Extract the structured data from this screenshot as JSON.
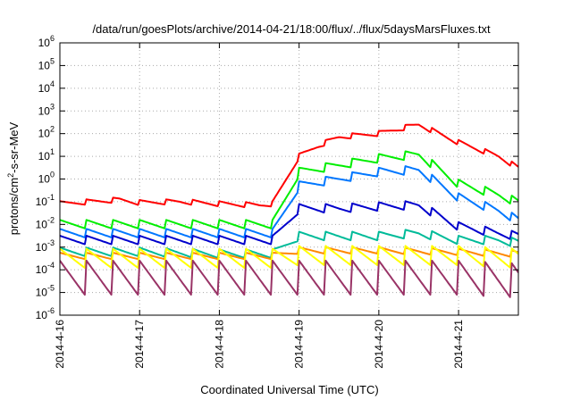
{
  "chart_data": {
    "type": "line",
    "title": "/data/run/goesPlots/archive/2014-04-21/18:00/flux/../flux/5daysMarsFluxes.txt",
    "xlabel": "Coordinated Universal Time (UTC)",
    "ylabel_parts": [
      "protons/cm",
      "2",
      "-s-sr-MeV"
    ],
    "y_scale": "log",
    "ylim": [
      1e-06,
      1000000.0
    ],
    "xlim": [
      "2014-04-16 00:00",
      "2014-04-21 18:00"
    ],
    "grid": true,
    "legend": "none",
    "x_ticks": [
      "2014-4-16",
      "2014-4-17",
      "2014-4-18",
      "2014-4-19",
      "2014-4-20",
      "2014-4-21"
    ],
    "y_ticks": [
      {
        "base": "10",
        "exp": "-6"
      },
      {
        "base": "10",
        "exp": "-5"
      },
      {
        "base": "10",
        "exp": "-4"
      },
      {
        "base": "10",
        "exp": "-3"
      },
      {
        "base": "10",
        "exp": "-2"
      },
      {
        "base": "10",
        "exp": "-1"
      },
      {
        "base": "10",
        "exp": "0"
      },
      {
        "base": "10",
        "exp": "1"
      },
      {
        "base": "10",
        "exp": "2"
      },
      {
        "base": "10",
        "exp": "3"
      },
      {
        "base": "10",
        "exp": "4"
      },
      {
        "base": "10",
        "exp": "5"
      },
      {
        "base": "10",
        "exp": "6"
      }
    ],
    "series": [
      {
        "color": "#ff0000",
        "sawtooth": 0.12,
        "x": [
          "2014-04-16 00:00",
          "2014-04-16 18:00",
          "2014-04-17 00:00",
          "2014-04-17 12:00",
          "2014-04-18 00:00",
          "2014-04-18 12:00",
          "2014-04-18 16:00",
          "2014-04-19 00:00",
          "2014-04-19 06:00",
          "2014-04-19 12:00",
          "2014-04-20 00:00",
          "2014-04-20 12:00",
          "2014-04-21 00:00",
          "2014-04-21 12:00",
          "2014-04-21 18:00"
        ],
        "y": [
          0.08,
          0.12,
          0.09,
          0.1,
          0.08,
          0.07,
          0.08,
          10,
          30,
          70,
          100,
          250,
          40,
          10,
          3
        ]
      },
      {
        "color": "#00ee00",
        "sawtooth": 0.2,
        "x": [
          "2014-04-16 00:00",
          "2014-04-17 00:00",
          "2014-04-18 00:00",
          "2014-04-18 16:00",
          "2014-04-19 00:00",
          "2014-04-19 12:00",
          "2014-04-20 00:00",
          "2014-04-20 12:00",
          "2014-04-21 00:00",
          "2014-04-21 12:00",
          "2014-04-21 18:00"
        ],
        "y": [
          0.01,
          0.01,
          0.01,
          0.01,
          2,
          4,
          8,
          12,
          0.6,
          0.2,
          0.09
        ]
      },
      {
        "color": "#0077ff",
        "sawtooth": 0.2,
        "x": [
          "2014-04-16 00:00",
          "2014-04-17 00:00",
          "2014-04-18 00:00",
          "2014-04-18 16:00",
          "2014-04-19 00:00",
          "2014-04-19 12:00",
          "2014-04-20 00:00",
          "2014-04-20 12:00",
          "2014-04-21 00:00",
          "2014-04-21 12:00",
          "2014-04-21 18:00"
        ],
        "y": [
          0.004,
          0.004,
          0.004,
          0.004,
          0.5,
          1,
          2,
          2.5,
          0.15,
          0.04,
          0.015
        ]
      },
      {
        "color": "#0000cc",
        "sawtooth": 0.2,
        "x": [
          "2014-04-16 00:00",
          "2014-04-17 00:00",
          "2014-04-18 00:00",
          "2014-04-18 16:00",
          "2014-04-19 00:00",
          "2014-04-19 12:00",
          "2014-04-20 00:00",
          "2014-04-20 12:00",
          "2014-04-21 00:00",
          "2014-04-21 12:00",
          "2014-04-21 18:00"
        ],
        "y": [
          0.002,
          0.002,
          0.002,
          0.002,
          0.05,
          0.05,
          0.06,
          0.07,
          0.008,
          0.004,
          0.003
        ]
      },
      {
        "color": "#00bb99",
        "sawtooth": 0.2,
        "x": [
          "2014-04-16 00:00",
          "2014-04-17 00:00",
          "2014-04-18 00:00",
          "2014-04-18 16:00",
          "2014-04-19 00:00",
          "2014-04-19 12:00",
          "2014-04-20 00:00",
          "2014-04-20 12:00",
          "2014-04-21 00:00",
          "2014-04-21 12:00",
          "2014-04-21 18:00"
        ],
        "y": [
          0.0006,
          0.0006,
          0.0005,
          0.0005,
          0.003,
          0.003,
          0.003,
          0.004,
          0.002,
          0.002,
          0.0015
        ]
      },
      {
        "color": "#ff8800",
        "sawtooth": 0.15,
        "x": [
          "2014-04-16 00:00",
          "2014-04-18 16:00",
          "2014-04-19 00:00",
          "2014-04-20 00:00",
          "2014-04-21 00:00",
          "2014-04-21 18:00"
        ],
        "y": [
          0.0004,
          0.0004,
          0.0007,
          0.0007,
          0.0006,
          0.0005
        ]
      },
      {
        "color": "#ffff00",
        "sawtooth": 0.45,
        "x": [
          "2014-04-16 00:00",
          "2014-04-18 16:00",
          "2014-04-19 00:00",
          "2014-04-20 00:00",
          "2014-04-21 00:00",
          "2014-04-21 18:00"
        ],
        "y": [
          0.0003,
          0.0003,
          0.0004,
          0.0004,
          0.0004,
          0.0003
        ]
      },
      {
        "color": "#993366",
        "sawtooth": 0.8,
        "x": [
          "2014-04-16 00:00",
          "2014-04-18 16:00",
          "2014-04-19 00:00",
          "2014-04-20 00:00",
          "2014-04-21 00:00",
          "2014-04-21 18:00"
        ],
        "y": [
          4e-05,
          4e-05,
          4e-05,
          4e-05,
          4e-05,
          3e-05
        ]
      }
    ]
  }
}
